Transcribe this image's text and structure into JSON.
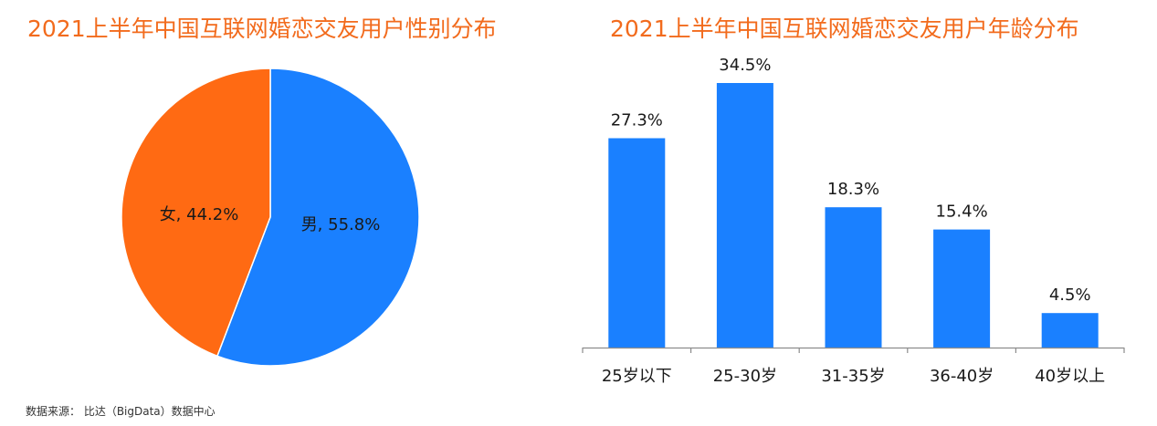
{
  "source_note": "数据来源： 比达（BigData）数据中心",
  "colors": {
    "title": "#f26b1d",
    "male": "#1a80ff",
    "female": "#ff6a13",
    "bar": "#1a80ff",
    "axis": "#8c8c8c",
    "text": "#1a1a1a"
  },
  "chart_data": [
    {
      "type": "pie",
      "title": "2021上半年中国互联网婚恋交友用户性别分布",
      "slices": [
        {
          "name": "男",
          "value": 55.8,
          "label": "男, 55.8%"
        },
        {
          "name": "女",
          "value": 44.2,
          "label": "女, 44.2%"
        }
      ],
      "unit": "%"
    },
    {
      "type": "bar",
      "title": "2021上半年中国互联网婚恋交友用户年龄分布",
      "categories": [
        "25岁以下",
        "25-30岁",
        "31-35岁",
        "36-40岁",
        "40岁以上"
      ],
      "values": [
        27.3,
        34.5,
        18.3,
        15.4,
        4.5
      ],
      "labels": [
        "27.3%",
        "34.5%",
        "18.3%",
        "15.4%",
        "4.5%"
      ],
      "unit": "%"
    }
  ]
}
